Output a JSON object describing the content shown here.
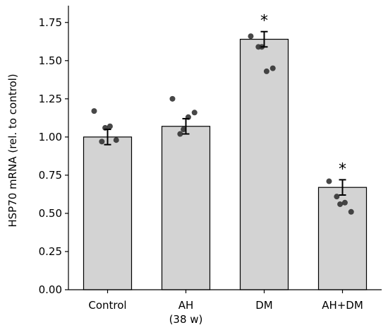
{
  "chart_data": {
    "type": "bar",
    "categories": [
      [
        "Control"
      ],
      [
        "AH",
        "(38 w)"
      ],
      [
        "DM"
      ],
      [
        "AH+DM"
      ]
    ],
    "values": [
      1.0,
      1.07,
      1.64,
      0.67
    ],
    "errors": [
      0.05,
      0.05,
      0.05,
      0.05
    ],
    "points": [
      [
        1.17,
        0.97,
        1.07,
        0.98,
        1.06
      ],
      [
        1.25,
        1.02,
        1.13,
        1.16,
        1.05
      ],
      [
        1.66,
        1.59,
        1.43,
        1.45,
        1.59
      ],
      [
        0.71,
        0.61,
        0.57,
        0.51,
        0.56
      ]
    ],
    "significance": [
      "",
      "",
      "*",
      "*"
    ],
    "ylabel": "HSP70 mRNA (rel. to control)",
    "xlabel": "",
    "ylim": [
      0,
      1.86
    ],
    "yticks": [
      "0.00",
      "0.25",
      "0.50",
      "0.75",
      "1.00",
      "1.25",
      "1.50",
      "1.75"
    ],
    "grid": false,
    "colors": {
      "bar": "#d3d3d3",
      "bar_edge": "#000000",
      "point": "#333333",
      "error": "#000000"
    }
  }
}
